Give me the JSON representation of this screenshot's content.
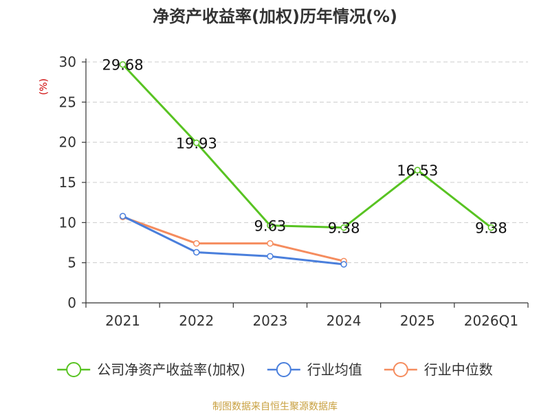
{
  "chart_data": {
    "type": "line",
    "title": "净资产收益率(加权)历年情况(%)",
    "ylabel": "(%)",
    "xlabel": "",
    "categories": [
      "2021",
      "2022",
      "2023",
      "2024",
      "2025",
      "2026Q1"
    ],
    "ylim": [
      0,
      30
    ],
    "yticks": [
      0,
      5,
      10,
      15,
      20,
      25,
      30
    ],
    "grid": true,
    "legend_position": "bottom",
    "series": [
      {
        "name": "公司净资产收益率(加权)",
        "color": "#58c322",
        "values": [
          29.68,
          19.93,
          9.63,
          9.38,
          16.53,
          9.38
        ],
        "labels": [
          "29.68",
          "19.93",
          "9.63",
          "9.38",
          "16.53",
          "9.38"
        ]
      },
      {
        "name": "行业均值",
        "color": "#4a7fdc",
        "values": [
          10.8,
          6.3,
          5.8,
          4.8,
          null,
          null
        ]
      },
      {
        "name": "行业中位数",
        "color": "#f58c5e",
        "values": [
          10.7,
          7.4,
          7.4,
          5.2,
          null,
          null
        ]
      }
    ]
  },
  "footer": {
    "source": "制图数据来自恒生聚源数据库"
  }
}
